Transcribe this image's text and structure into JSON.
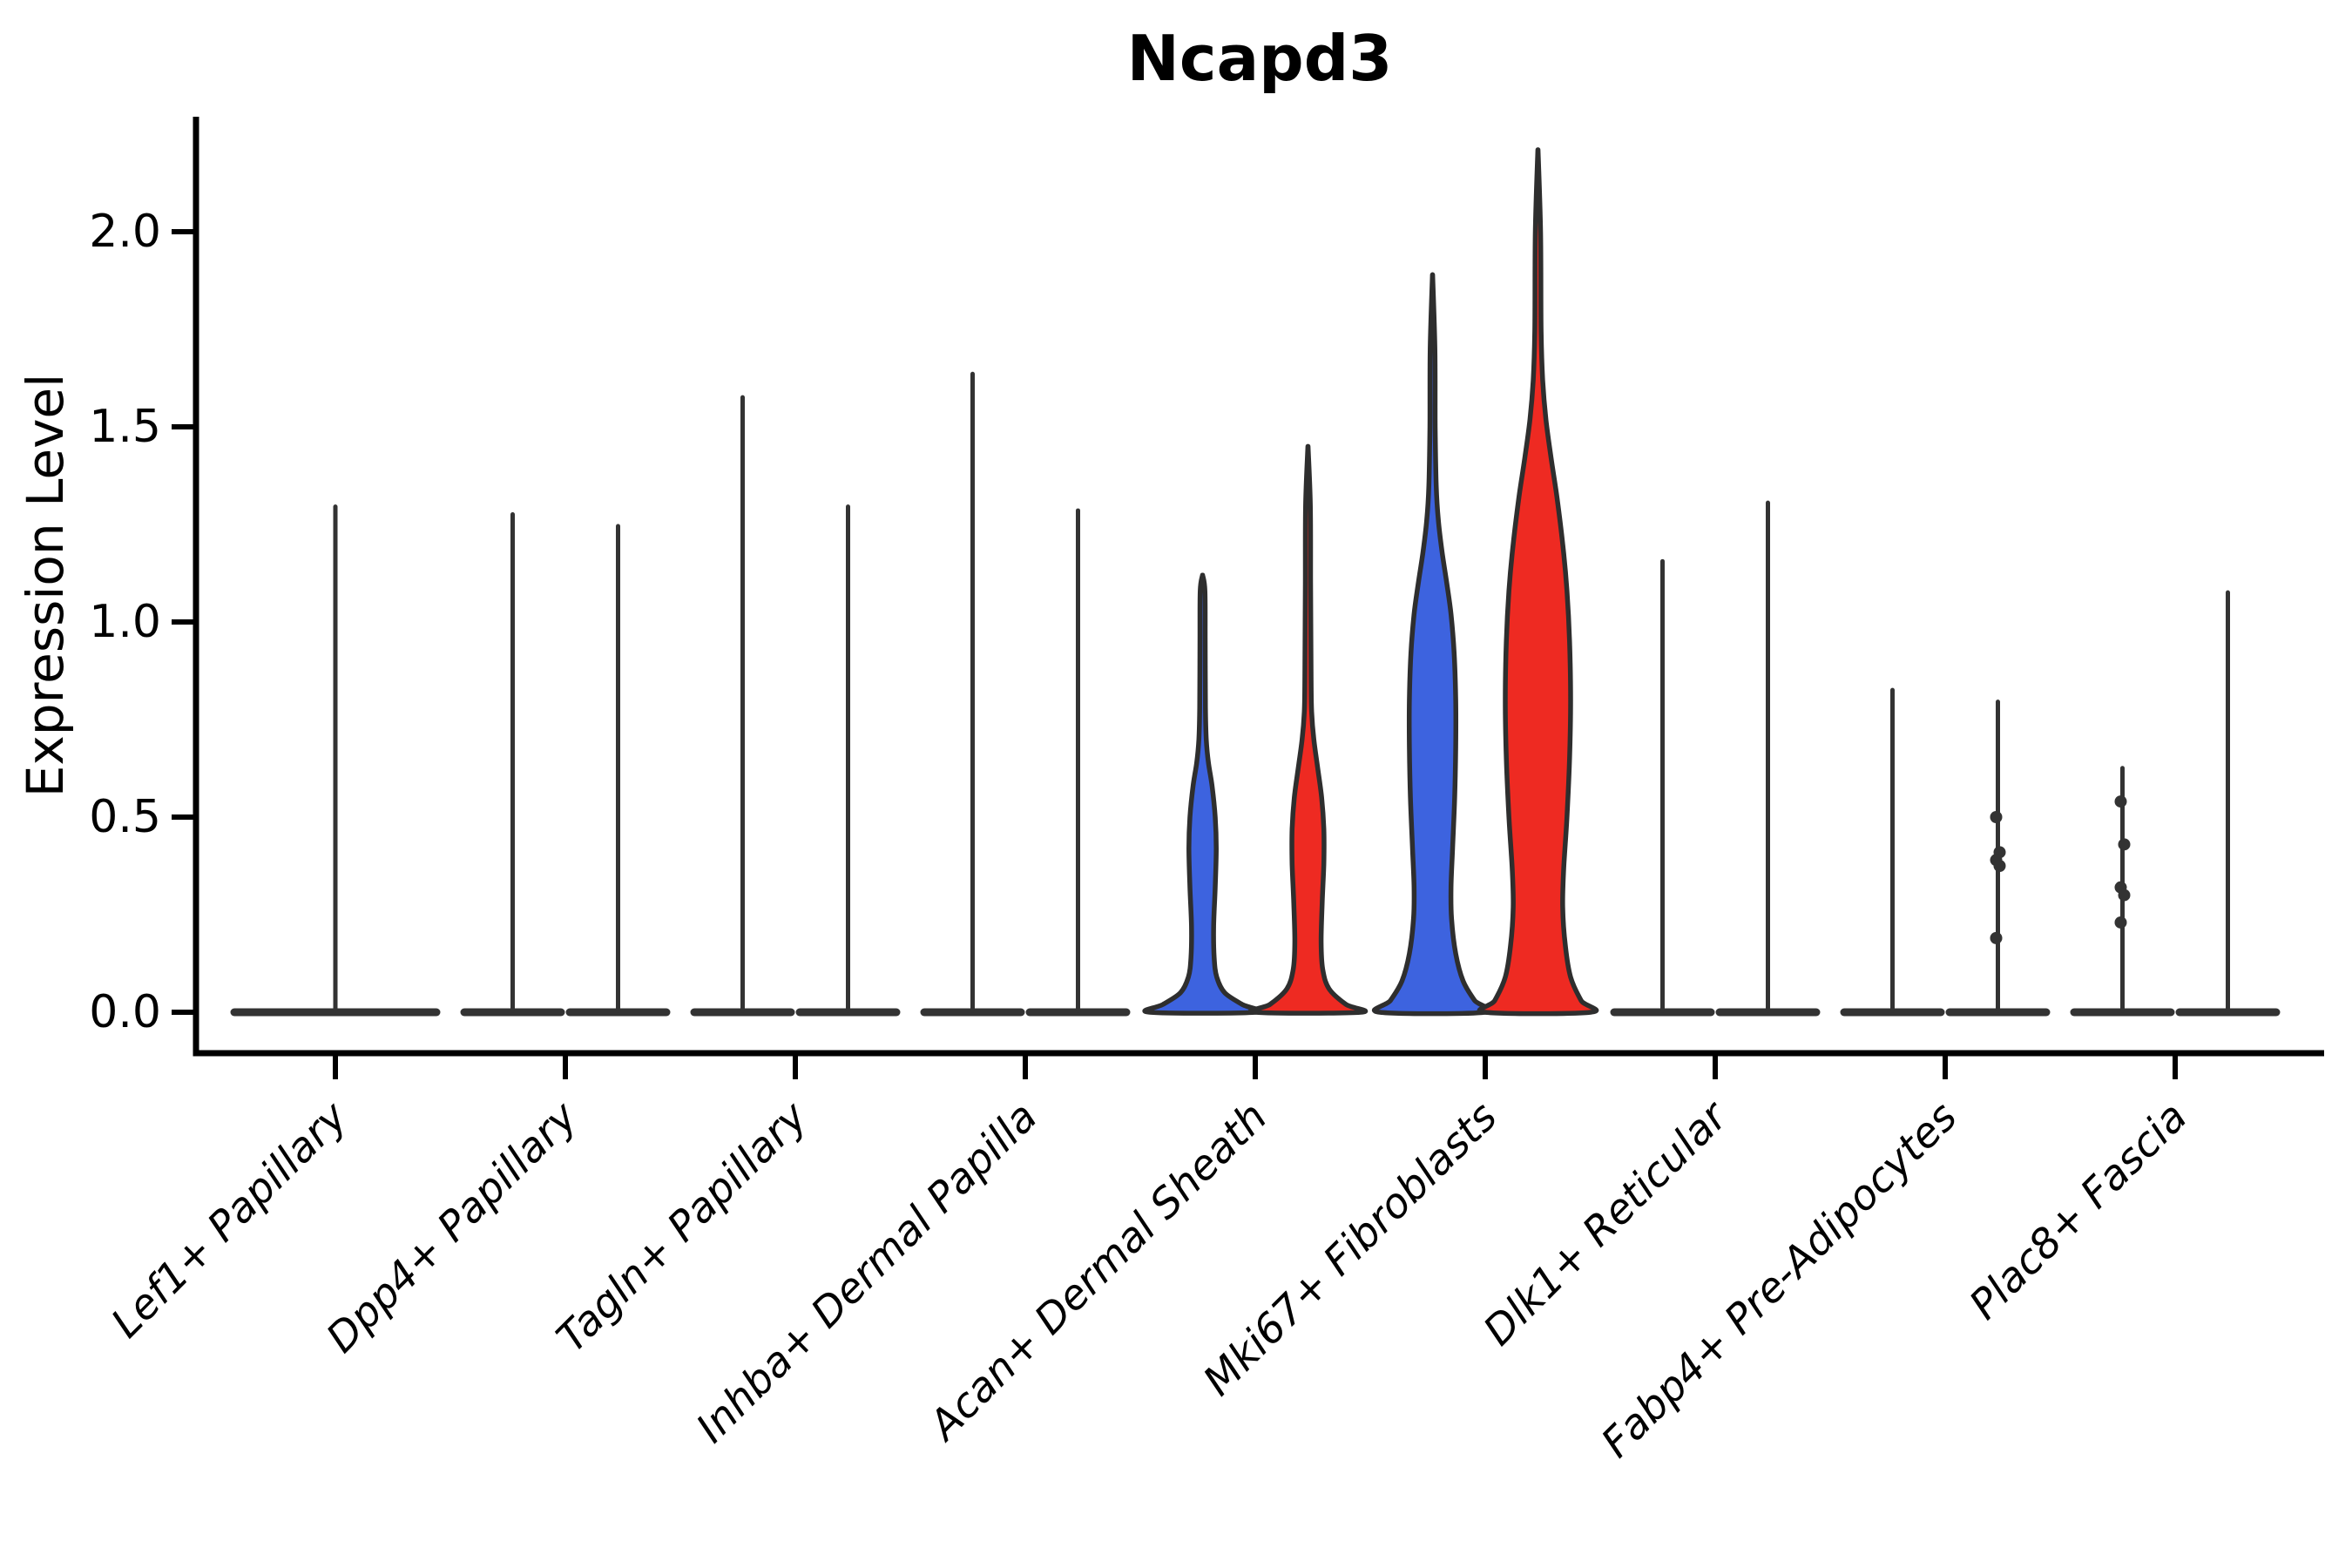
{
  "chart_data": {
    "type": "violin",
    "title": "Ncapd3",
    "ylabel": "Expression Level",
    "xlabel": "",
    "grid": false,
    "legend": "none",
    "ylim": [
      -0.105,
      2.3
    ],
    "yticks": [
      {
        "value": 0.0,
        "label": "0.0"
      },
      {
        "value": 0.5,
        "label": "0.5"
      },
      {
        "value": 1.0,
        "label": "1.0"
      },
      {
        "value": 1.5,
        "label": "1.5"
      },
      {
        "value": 2.0,
        "label": "2.0"
      }
    ],
    "colors": {
      "blue": "#3D63DF",
      "red": "#EE2A22",
      "outline": "#2E2E2E",
      "spike": "#333333",
      "axis": "#000000"
    },
    "categories": [
      {
        "label": "Lef1+ Papillary",
        "groups": [
          {
            "name": "all",
            "kind": "spike",
            "span": "full",
            "color": null,
            "max": 1.3,
            "points": []
          }
        ]
      },
      {
        "label": "Dpp4+ Papillary",
        "groups": [
          {
            "name": "cond1",
            "kind": "spike",
            "span": "half",
            "color": "blue",
            "max": 1.28,
            "points": []
          },
          {
            "name": "cond2",
            "kind": "spike",
            "span": "half",
            "color": "red",
            "max": 1.25,
            "points": []
          }
        ]
      },
      {
        "label": "Tagln+ Papillary",
        "groups": [
          {
            "name": "cond1",
            "kind": "spike",
            "span": "half",
            "color": "blue",
            "max": 1.58,
            "points": []
          },
          {
            "name": "cond2",
            "kind": "spike",
            "span": "half",
            "color": "red",
            "max": 1.3,
            "points": []
          }
        ]
      },
      {
        "label": "Inhba+ Dermal Papilla",
        "groups": [
          {
            "name": "cond1",
            "kind": "spike",
            "span": "half",
            "color": "blue",
            "max": 1.64,
            "points": []
          },
          {
            "name": "cond2",
            "kind": "spike",
            "span": "half",
            "color": "red",
            "max": 1.29,
            "points": []
          }
        ]
      },
      {
        "label": "Acan+ Dermal Sheath",
        "groups": [
          {
            "name": "cond1",
            "kind": "violin",
            "span": "half",
            "color": "blue",
            "max": 1.12,
            "profile": [
              [
                0,
                1
              ],
              [
                0.02,
                0.75
              ],
              [
                0.05,
                0.42
              ],
              [
                0.09,
                0.27
              ],
              [
                0.14,
                0.22
              ],
              [
                0.22,
                0.21
              ],
              [
                0.32,
                0.24
              ],
              [
                0.42,
                0.26
              ],
              [
                0.5,
                0.24
              ],
              [
                0.58,
                0.18
              ],
              [
                0.64,
                0.11
              ],
              [
                0.7,
                0.07
              ],
              [
                0.78,
                0.055
              ],
              [
                0.95,
                0.05
              ],
              [
                1.08,
                0.045
              ],
              [
                1.12,
                0.001
              ]
            ],
            "points": []
          },
          {
            "name": "cond2",
            "kind": "violin",
            "span": "half",
            "color": "red",
            "max": 1.45,
            "profile": [
              [
                0,
                1
              ],
              [
                0.02,
                0.72
              ],
              [
                0.06,
                0.4
              ],
              [
                0.11,
                0.28
              ],
              [
                0.18,
                0.25
              ],
              [
                0.28,
                0.27
              ],
              [
                0.38,
                0.3
              ],
              [
                0.47,
                0.3
              ],
              [
                0.55,
                0.26
              ],
              [
                0.63,
                0.18
              ],
              [
                0.7,
                0.11
              ],
              [
                0.77,
                0.07
              ],
              [
                0.85,
                0.06
              ],
              [
                1.1,
                0.05
              ],
              [
                1.3,
                0.045
              ],
              [
                1.45,
                0.001
              ]
            ],
            "points": []
          }
        ]
      },
      {
        "label": "Mki67+ Fibroblasts",
        "groups": [
          {
            "name": "cond1",
            "kind": "violin",
            "span": "half",
            "color": "blue",
            "max": 1.89,
            "profile": [
              [
                0,
                1
              ],
              [
                0.03,
                0.8
              ],
              [
                0.08,
                0.58
              ],
              [
                0.15,
                0.44
              ],
              [
                0.24,
                0.36
              ],
              [
                0.32,
                0.35
              ],
              [
                0.42,
                0.38
              ],
              [
                0.55,
                0.42
              ],
              [
                0.68,
                0.44
              ],
              [
                0.8,
                0.44
              ],
              [
                0.92,
                0.41
              ],
              [
                1.02,
                0.35
              ],
              [
                1.1,
                0.27
              ],
              [
                1.18,
                0.18
              ],
              [
                1.26,
                0.11
              ],
              [
                1.35,
                0.07
              ],
              [
                1.5,
                0.05
              ],
              [
                1.7,
                0.045
              ],
              [
                1.89,
                0.001
              ]
            ],
            "points": []
          },
          {
            "name": "cond2",
            "kind": "violin",
            "span": "half",
            "color": "red",
            "max": 2.21,
            "profile": [
              [
                0,
                1
              ],
              [
                0.03,
                0.82
              ],
              [
                0.09,
                0.62
              ],
              [
                0.17,
                0.52
              ],
              [
                0.27,
                0.47
              ],
              [
                0.37,
                0.49
              ],
              [
                0.5,
                0.55
              ],
              [
                0.65,
                0.6
              ],
              [
                0.8,
                0.62
              ],
              [
                0.95,
                0.6
              ],
              [
                1.08,
                0.55
              ],
              [
                1.2,
                0.47
              ],
              [
                1.32,
                0.36
              ],
              [
                1.42,
                0.25
              ],
              [
                1.52,
                0.15
              ],
              [
                1.62,
                0.09
              ],
              [
                1.75,
                0.06
              ],
              [
                2.0,
                0.05
              ],
              [
                2.21,
                0.001
              ]
            ],
            "points": []
          }
        ]
      },
      {
        "label": "Dlk1+ Reticular",
        "groups": [
          {
            "name": "cond1",
            "kind": "spike",
            "span": "half",
            "color": "blue",
            "max": 1.16,
            "points": []
          },
          {
            "name": "cond2",
            "kind": "spike",
            "span": "half",
            "color": "red",
            "max": 1.31,
            "points": []
          }
        ]
      },
      {
        "label": "Fabp4+ Pre-Adipocytes",
        "groups": [
          {
            "name": "cond1",
            "kind": "spike",
            "span": "half",
            "color": "blue",
            "max": 0.83,
            "points": []
          },
          {
            "name": "cond2",
            "kind": "spike",
            "span": "half",
            "color": "red",
            "max": 0.8,
            "points": [
              0.5,
              0.41,
              0.39,
              0.375,
              0.19
            ]
          }
        ]
      },
      {
        "label": "Plac8+ Fascia",
        "groups": [
          {
            "name": "cond1",
            "kind": "spike",
            "span": "half",
            "color": "blue",
            "max": 0.63,
            "points": [
              0.54,
              0.43,
              0.32,
              0.3,
              0.23
            ]
          },
          {
            "name": "cond2",
            "kind": "spike",
            "span": "half",
            "color": "red",
            "max": 1.08,
            "points": []
          }
        ]
      }
    ]
  }
}
